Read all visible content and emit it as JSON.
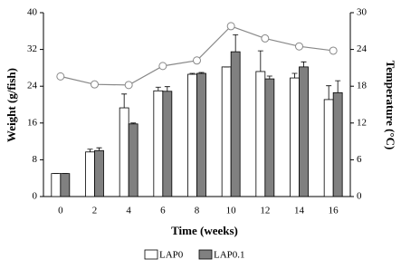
{
  "chart_data": {
    "type": "bar_line",
    "x_label": "Time (weeks)",
    "y_label": "Weight (g/fish)",
    "y2_label": "Temperature (°C)",
    "categories": [
      "0",
      "2",
      "4",
      "6",
      "8",
      "10",
      "12",
      "14",
      "16"
    ],
    "series": [
      {
        "name": "LAP0",
        "type": "bar",
        "color": "#ffffff",
        "values": [
          5,
          9.7,
          19.3,
          23,
          26.6,
          28.2,
          27.2,
          25.8,
          21.1
        ],
        "errors": [
          0,
          0.6,
          3,
          0.8,
          0.2,
          0,
          4.5,
          1,
          3
        ]
      },
      {
        "name": "LAP0.1",
        "type": "bar",
        "color": "#808080",
        "values": [
          5,
          10,
          15.8,
          22.9,
          26.8,
          31.5,
          25.6,
          28.2,
          22.6
        ],
        "errors": [
          0,
          0.6,
          0.2,
          1,
          0.2,
          3.7,
          0.6,
          1.1,
          2.6
        ]
      },
      {
        "type": "line",
        "axis": "y2",
        "color": "#888888",
        "values": [
          19.6,
          18.3,
          18.2,
          21.3,
          22.2,
          27.8,
          25.8,
          24.5,
          23.8
        ]
      }
    ],
    "ylim": [
      0,
      40
    ],
    "yticks": [
      0,
      8,
      16,
      24,
      32,
      40
    ],
    "y2lim": [
      0,
      30
    ],
    "y2ticks": [
      0,
      6,
      12,
      18,
      24,
      30
    ]
  }
}
